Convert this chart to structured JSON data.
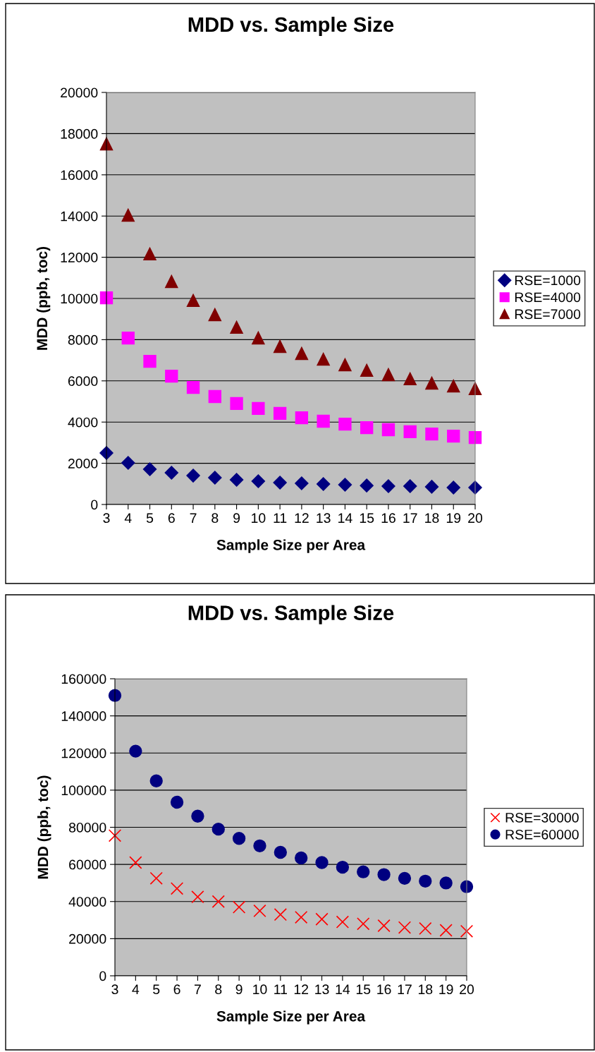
{
  "chart_data": [
    {
      "type": "scatter",
      "title": "MDD vs. Sample Size",
      "xlabel": "Sample Size per Area",
      "ylabel": "MDD (ppb, toc)",
      "categories": [
        "3",
        "4",
        "5",
        "6",
        "7",
        "8",
        "9",
        "10",
        "11",
        "12",
        "13",
        "14",
        "15",
        "16",
        "17",
        "18",
        "19",
        "20"
      ],
      "ylim": [
        0,
        20000
      ],
      "yticks": [
        0,
        2000,
        4000,
        6000,
        8000,
        10000,
        12000,
        14000,
        16000,
        18000,
        20000
      ],
      "grid": "y",
      "legend": "right",
      "series": [
        {
          "name": "RSE=1000",
          "color": "#000080",
          "marker": "diamond",
          "values": [
            2500,
            2020,
            1710,
            1540,
            1400,
            1300,
            1200,
            1130,
            1060,
            1030,
            990,
            960,
            920,
            890,
            890,
            860,
            820,
            820
          ]
        },
        {
          "name": "RSE=4000",
          "color": "#ff00ff",
          "marker": "square",
          "values": [
            10030,
            8080,
            6950,
            6230,
            5680,
            5240,
            4900,
            4660,
            4420,
            4210,
            4040,
            3900,
            3730,
            3630,
            3530,
            3420,
            3320,
            3250
          ]
        },
        {
          "name": "RSE=7000",
          "color": "#800000",
          "marker": "triangle",
          "values": [
            17500,
            14040,
            12160,
            10820,
            9900,
            9210,
            8600,
            8080,
            7670,
            7330,
            7050,
            6780,
            6510,
            6300,
            6100,
            5890,
            5750,
            5620
          ]
        }
      ]
    },
    {
      "type": "scatter",
      "title": "MDD vs. Sample Size",
      "xlabel": "Sample Size per Area",
      "ylabel": "MDD (ppb, toc)",
      "categories": [
        "3",
        "4",
        "5",
        "6",
        "7",
        "8",
        "9",
        "10",
        "11",
        "12",
        "13",
        "14",
        "15",
        "16",
        "17",
        "18",
        "19",
        "20"
      ],
      "ylim": [
        0,
        160000
      ],
      "yticks": [
        0,
        20000,
        40000,
        60000,
        80000,
        100000,
        120000,
        140000,
        160000
      ],
      "grid": "y",
      "legend": "right",
      "series": [
        {
          "name": "RSE=30000",
          "color": "#ff0000",
          "marker": "cross",
          "values": [
            75500,
            61000,
            52500,
            47000,
            42500,
            40000,
            37000,
            35000,
            33000,
            31500,
            30500,
            29000,
            28000,
            27000,
            26000,
            25500,
            24500,
            24000
          ]
        },
        {
          "name": "RSE=60000",
          "color": "#000080",
          "marker": "circle",
          "values": [
            151000,
            121000,
            105000,
            93500,
            86000,
            79000,
            74000,
            70000,
            66500,
            63500,
            61000,
            58500,
            56000,
            54500,
            52500,
            51000,
            50000,
            48000
          ]
        }
      ]
    }
  ]
}
